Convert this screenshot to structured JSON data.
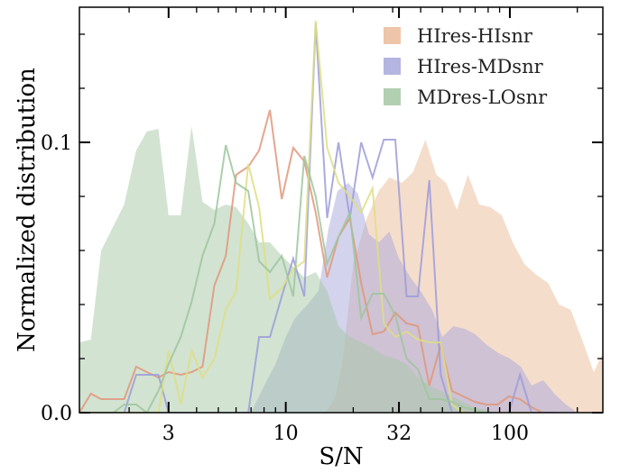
{
  "chart_data": {
    "type": "area",
    "title": "",
    "xlabel": "S/N",
    "ylabel": "Normalized distribution",
    "x_scale": "log",
    "xlim": [
      1.2,
      260
    ],
    "ylim": [
      0,
      0.15
    ],
    "x_ticks": [
      3,
      10,
      32,
      100
    ],
    "x_tick_labels": [
      "3",
      "10",
      "32",
      "100"
    ],
    "y_ticks": [
      0.0,
      0.1
    ],
    "y_tick_labels": [
      "0.0",
      "0.1"
    ],
    "grid": false,
    "legend_position": "top-right",
    "legend": [
      "HIres-HIsnr",
      "HIres-MDsnr",
      "MDres-LOsnr"
    ],
    "series": [
      {
        "name": "HIres-HIsnr",
        "kind": "filled",
        "color": "#ecbb9a",
        "x": [
          15,
          16.5,
          18,
          20,
          23,
          26,
          29,
          33,
          37,
          42,
          47,
          52,
          58,
          65,
          73,
          82,
          92,
          103,
          116,
          131,
          148,
          166,
          187,
          210,
          237,
          260
        ],
        "y": [
          0,
          0.005,
          0.02,
          0.055,
          0.072,
          0.082,
          0.087,
          0.085,
          0.089,
          0.101,
          0.088,
          0.085,
          0.075,
          0.088,
          0.077,
          0.076,
          0.073,
          0.063,
          0.055,
          0.051,
          0.048,
          0.04,
          0.038,
          0.027,
          0.015,
          0.022
        ]
      },
      {
        "name": "HIres-MDsnr",
        "kind": "filled",
        "color": "#a8a8dc",
        "x": [
          7,
          8,
          9,
          10,
          11,
          12.5,
          14,
          15.5,
          17,
          19,
          21,
          23.5,
          26,
          29,
          32,
          36,
          40,
          45,
          50,
          56,
          63,
          70,
          79,
          89,
          100,
          112,
          125,
          141,
          158,
          178,
          200
        ],
        "y": [
          0,
          0.01,
          0.018,
          0.028,
          0.035,
          0.04,
          0.045,
          0.068,
          0.082,
          0.085,
          0.081,
          0.066,
          0.063,
          0.067,
          0.057,
          0.05,
          0.045,
          0.038,
          0.028,
          0.032,
          0.031,
          0.029,
          0.025,
          0.022,
          0.02,
          0.017,
          0.01,
          0.012,
          0.007,
          0.003,
          0
        ]
      },
      {
        "name": "MDres-LOsnr",
        "kind": "filled",
        "color": "#a5c7a5",
        "x": [
          1.2,
          1.35,
          1.5,
          1.7,
          1.9,
          2.15,
          2.4,
          2.7,
          3.0,
          3.4,
          3.8,
          4.25,
          4.8,
          5.4,
          6.0,
          6.8,
          7.6,
          8.5,
          9.6,
          10.8,
          12.1,
          13.6,
          15.3,
          17.2,
          19.3,
          21.7,
          24.4,
          27.4,
          30.8,
          34.6,
          38.9,
          43.7,
          49.1,
          55.2,
          62.0,
          69.7,
          78.3,
          88
        ],
        "y": [
          0.026,
          0.027,
          0.06,
          0.069,
          0.077,
          0.097,
          0.104,
          0.105,
          0.073,
          0.073,
          0.106,
          0.078,
          0.075,
          0.077,
          0.076,
          0.07,
          0.063,
          0.063,
          0.058,
          0.054,
          0.05,
          0.052,
          0.045,
          0.032,
          0.028,
          0.026,
          0.024,
          0.021,
          0.02,
          0.018,
          0.013,
          0.01,
          0.008,
          0.006,
          0.004,
          0.002,
          0.001,
          0
        ]
      },
      {
        "name": "red-line",
        "kind": "line",
        "color": "#e0967a",
        "x": [
          1.2,
          1.35,
          1.5,
          1.7,
          1.9,
          2.15,
          2.4,
          2.7,
          3.0,
          3.4,
          3.8,
          4.25,
          4.8,
          5.4,
          6.0,
          6.8,
          7.6,
          8.5,
          9.6,
          10.8,
          12.1,
          13.6,
          15.3,
          17.2,
          19.3,
          21.7,
          24.4,
          27.4,
          30.8,
          34.6,
          38.9,
          43.7,
          49.1,
          55.2,
          62.0,
          69.7,
          78.3,
          88,
          99,
          111,
          125,
          140
        ],
        "y": [
          0,
          0.007,
          0.005,
          0.005,
          0.005,
          0.017,
          0.015,
          0.013,
          0.015,
          0.014,
          0.015,
          0.017,
          0.047,
          0.058,
          0.088,
          0.091,
          0.097,
          0.112,
          0.079,
          0.098,
          0.093,
          0.074,
          0.05,
          0.065,
          0.072,
          0.048,
          0.029,
          0.03,
          0.037,
          0.033,
          0.032,
          0.01,
          0.025,
          0.008,
          0.006,
          0.004,
          0.003,
          0.003,
          0.006,
          0.005,
          0.002,
          0
        ]
      },
      {
        "name": "blue-line",
        "kind": "line",
        "color": "#9c9cd8",
        "x": [
          1.2,
          1.35,
          1.5,
          1.7,
          1.9,
          2.15,
          2.4,
          2.7,
          3.0,
          3.4,
          3.8,
          4.25,
          4.8,
          5.4,
          6.0,
          6.8,
          7.6,
          8.5,
          9.6,
          10.8,
          12.1,
          13.6,
          15.3,
          17.2,
          19.3,
          21.7,
          24.4,
          27.4,
          30.8,
          34.6,
          38.9,
          43.7,
          49.1,
          55.2,
          62.0,
          69.7,
          78.3,
          88,
          99,
          111,
          125,
          140,
          157
        ],
        "y": [
          0,
          0,
          0,
          0,
          0,
          0.014,
          0.014,
          0.014,
          0,
          0,
          0,
          0,
          0,
          0,
          0,
          0,
          0.028,
          0.028,
          0.043,
          0.057,
          0.043,
          0.144,
          0.072,
          0.1,
          0.072,
          0.1,
          0.087,
          0.101,
          0.101,
          0.043,
          0.043,
          0.086,
          0.014,
          0,
          0,
          0,
          0,
          0,
          0,
          0.014,
          0,
          0,
          0
        ]
      },
      {
        "name": "yellow-line",
        "kind": "line",
        "color": "#dede82",
        "x": [
          1.2,
          1.35,
          1.5,
          1.7,
          1.9,
          2.15,
          2.4,
          2.7,
          3.0,
          3.4,
          3.8,
          4.25,
          4.8,
          5.4,
          6.0,
          6.8,
          7.6,
          8.5,
          9.6,
          10.8,
          12.1,
          13.6,
          15.3,
          17.2,
          19.3,
          21.7,
          24.4,
          27.4,
          30.8,
          34.6,
          38.9,
          43.7,
          49.1,
          55.2,
          62.0,
          69.7,
          78.3,
          88,
          99,
          111,
          125
        ],
        "y": [
          0,
          0,
          0,
          0,
          0,
          0,
          0,
          0,
          0.023,
          0.003,
          0.023,
          0.013,
          0.02,
          0.038,
          0.045,
          0.092,
          0.076,
          0.042,
          0.046,
          0.053,
          0.056,
          0.145,
          0.098,
          0.085,
          0.08,
          0.074,
          0.083,
          0.033,
          0.028,
          0.03,
          0.027,
          0.026,
          0.026,
          0.003,
          0,
          0,
          0,
          0,
          0,
          0,
          0
        ]
      },
      {
        "name": "green-line",
        "kind": "line",
        "color": "#9ec59e",
        "x": [
          1.2,
          1.35,
          1.5,
          1.7,
          1.9,
          2.15,
          2.4,
          2.7,
          3.0,
          3.4,
          3.8,
          4.25,
          4.8,
          5.4,
          6.0,
          6.8,
          7.6,
          8.5,
          9.6,
          10.8,
          12.1,
          13.6,
          15.3,
          17.2,
          19.3,
          21.7,
          24.4,
          27.4,
          30.8,
          34.6,
          38.9,
          43.7,
          49.1,
          55.2,
          62.0,
          69.7,
          78.3,
          88
        ],
        "y": [
          0,
          0,
          0,
          0,
          0.003,
          0.003,
          0,
          0.008,
          0.018,
          0.028,
          0.041,
          0.058,
          0.07,
          0.099,
          0.085,
          0.082,
          0.056,
          0.052,
          0.058,
          0.043,
          0.095,
          0.08,
          0.055,
          0.065,
          0.074,
          0.035,
          0.044,
          0.044,
          0.036,
          0.02,
          0.016,
          0.005,
          0.005,
          0.004,
          0.002,
          0.001,
          0,
          0
        ]
      }
    ]
  }
}
